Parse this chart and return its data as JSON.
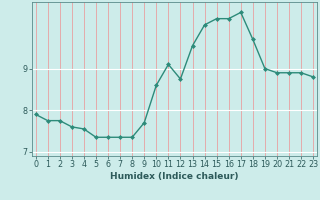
{
  "xlabel": "Humidex (Indice chaleur)",
  "x_values": [
    0,
    1,
    2,
    3,
    4,
    5,
    6,
    7,
    8,
    9,
    10,
    11,
    12,
    13,
    14,
    15,
    16,
    17,
    18,
    19,
    20,
    21,
    22,
    23
  ],
  "y_values": [
    7.9,
    7.75,
    7.75,
    7.6,
    7.55,
    7.35,
    7.35,
    7.35,
    7.35,
    7.7,
    8.6,
    9.1,
    8.75,
    9.55,
    10.05,
    10.2,
    10.2,
    10.35,
    9.7,
    9.0,
    8.9,
    8.9,
    8.9,
    8.8
  ],
  "line_color": "#2d8b7a",
  "marker": "D",
  "marker_size": 2.0,
  "line_width": 1.0,
  "background_color": "#cdecea",
  "ylim": [
    6.9,
    10.6
  ],
  "yticks": [
    7,
    8,
    9
  ],
  "xlim": [
    -0.3,
    23.3
  ],
  "xticks": [
    0,
    1,
    2,
    3,
    4,
    5,
    6,
    7,
    8,
    9,
    10,
    11,
    12,
    13,
    14,
    15,
    16,
    17,
    18,
    19,
    20,
    21,
    22,
    23
  ],
  "xlabel_fontsize": 6.5,
  "tick_fontsize": 5.8,
  "figsize": [
    3.2,
    2.0
  ],
  "dpi": 100
}
